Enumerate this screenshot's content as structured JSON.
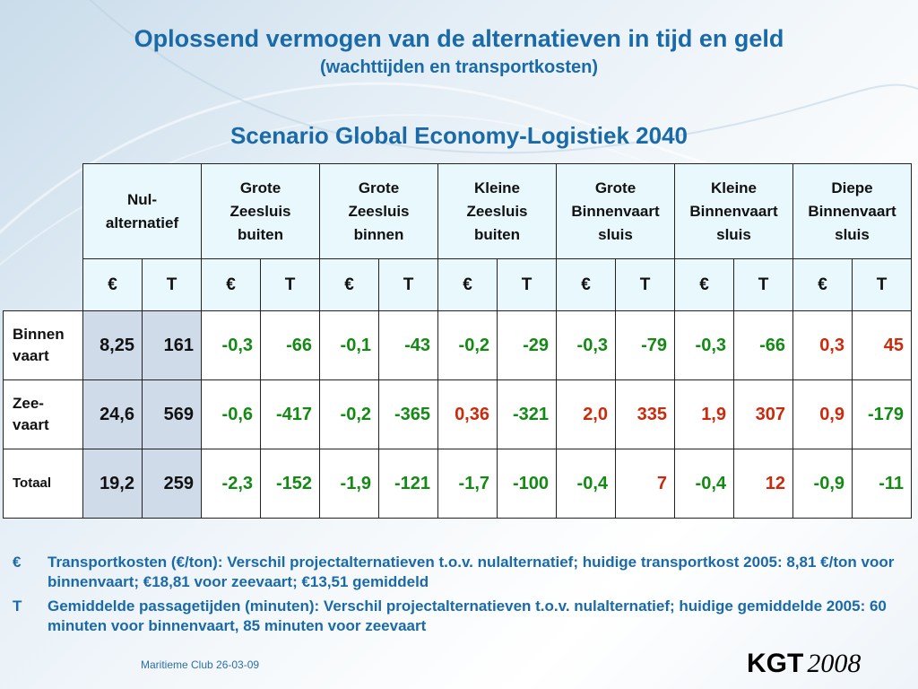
{
  "title": {
    "line1": "Oplossend vermogen van de alternatieven in tijd en geld",
    "line2": "(wachttijden en transportkosten)",
    "scenario": "Scenario Global Economy-Logistiek 2040"
  },
  "table": {
    "groups": [
      {
        "label": "Nul-\nalternatief"
      },
      {
        "label": "Grote\nZeesluis\nbuiten"
      },
      {
        "label": "Grote\nZeesluis\nbinnen"
      },
      {
        "label": "Kleine\nZeesluis\nbuiten"
      },
      {
        "label": "Grote\nBinnenvaart\nsluis"
      },
      {
        "label": "Kleine\nBinnenvaart\nsluis"
      },
      {
        "label": "Diepe\nBinnenvaart\nsluis"
      }
    ],
    "unit_euro": "€",
    "unit_time": "T",
    "rows": [
      {
        "label": "Binnen\nvaart",
        "cells": [
          {
            "v": "8,25",
            "c": "k"
          },
          {
            "v": "161",
            "c": "k"
          },
          {
            "v": "-0,3",
            "c": "g"
          },
          {
            "v": "-66",
            "c": "g"
          },
          {
            "v": "-0,1",
            "c": "g"
          },
          {
            "v": "-43",
            "c": "g"
          },
          {
            "v": "-0,2",
            "c": "g"
          },
          {
            "v": "-29",
            "c": "g"
          },
          {
            "v": "-0,3",
            "c": "g"
          },
          {
            "v": "-79",
            "c": "g"
          },
          {
            "v": "-0,3",
            "c": "g"
          },
          {
            "v": "-66",
            "c": "g"
          },
          {
            "v": "0,3",
            "c": "r"
          },
          {
            "v": "45",
            "c": "r"
          }
        ]
      },
      {
        "label": "Zee-\nvaart",
        "cells": [
          {
            "v": "24,6",
            "c": "k"
          },
          {
            "v": "569",
            "c": "k"
          },
          {
            "v": "-0,6",
            "c": "g"
          },
          {
            "v": "-417",
            "c": "g"
          },
          {
            "v": "-0,2",
            "c": "g"
          },
          {
            "v": "-365",
            "c": "g"
          },
          {
            "v": "0,36",
            "c": "r"
          },
          {
            "v": "-321",
            "c": "g"
          },
          {
            "v": "2,0",
            "c": "r"
          },
          {
            "v": "335",
            "c": "r"
          },
          {
            "v": "1,9",
            "c": "r"
          },
          {
            "v": "307",
            "c": "r"
          },
          {
            "v": "0,9",
            "c": "r"
          },
          {
            "v": "-179",
            "c": "g"
          }
        ]
      },
      {
        "label": "Totaal",
        "small": true,
        "cells": [
          {
            "v": "19,2",
            "c": "k"
          },
          {
            "v": "259",
            "c": "k"
          },
          {
            "v": "-2,3",
            "c": "g"
          },
          {
            "v": "-152",
            "c": "g"
          },
          {
            "v": "-1,9",
            "c": "g"
          },
          {
            "v": "-121",
            "c": "g"
          },
          {
            "v": "-1,7",
            "c": "g"
          },
          {
            "v": "-100",
            "c": "g"
          },
          {
            "v": "-0,4",
            "c": "g"
          },
          {
            "v": "7",
            "c": "r"
          },
          {
            "v": "-0,4",
            "c": "g"
          },
          {
            "v": "12",
            "c": "r"
          },
          {
            "v": "-0,9",
            "c": "g"
          },
          {
            "v": "-11",
            "c": "g"
          }
        ]
      }
    ]
  },
  "notes": [
    {
      "symbol": "€",
      "text": "Transportkosten (€/ton): Verschil projectalternatieven t.o.v. nulalternatief; huidige transportkost 2005: 8,81 €/ton voor binnenvaart; €18,81 voor zeevaart; €13,51 gemiddeld"
    },
    {
      "symbol": "T",
      "text": "Gemiddelde passagetijden (minuten): Verschil projectalternatieven t.o.v. nulalternatief; huidige gemiddelde 2005: 60 minuten voor binnenvaart, 85 minuten voor zeevaart"
    }
  ],
  "footer": "Maritieme Club 26-03-09",
  "logo": {
    "name": "KGT",
    "year": "2008"
  },
  "colors": {
    "title": "#1a6aa8",
    "green": "#138a13",
    "red": "#cc2a0c",
    "header_bg": "#e8f8fc",
    "base_bg": "#cfdbe9"
  }
}
